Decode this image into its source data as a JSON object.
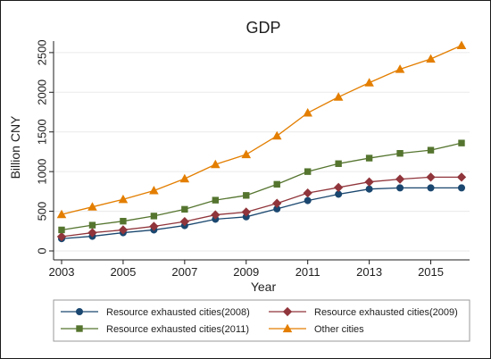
{
  "chart_data": {
    "type": "line",
    "title": "GDP",
    "xlabel": "Year",
    "ylabel": "Billion CNY",
    "x": [
      2003,
      2004,
      2005,
      2006,
      2007,
      2008,
      2009,
      2010,
      2011,
      2012,
      2013,
      2014,
      2015,
      2016
    ],
    "xlim": [
      2003,
      2016
    ],
    "ylim": [
      0,
      2600
    ],
    "xticks": [
      2003,
      2005,
      2007,
      2009,
      2011,
      2013,
      2015
    ],
    "yticks": [
      0,
      500,
      1000,
      1500,
      2000,
      2500
    ],
    "grid": "horizontal",
    "legend_position": "bottom",
    "series": [
      {
        "name": "Resource exhausted cities(2008)",
        "color": "#1a476f",
        "marker": "circle",
        "values": [
          155,
          185,
          230,
          265,
          320,
          400,
          430,
          530,
          635,
          715,
          780,
          795,
          795,
          795
        ]
      },
      {
        "name": "Resource exhausted cities(2009)",
        "color": "#90353b",
        "marker": "diamond",
        "values": [
          180,
          230,
          265,
          310,
          370,
          455,
          490,
          600,
          730,
          800,
          870,
          905,
          930,
          930
        ]
      },
      {
        "name": "Resource exhausted cities(2011)",
        "color": "#55752f",
        "marker": "square",
        "values": [
          265,
          325,
          375,
          440,
          525,
          640,
          700,
          840,
          1000,
          1100,
          1170,
          1230,
          1270,
          1360
        ]
      },
      {
        "name": "Other cities",
        "color": "#e37e00",
        "marker": "triangle",
        "values": [
          460,
          555,
          650,
          760,
          910,
          1090,
          1215,
          1450,
          1740,
          1940,
          2120,
          2290,
          2420,
          2590
        ]
      }
    ]
  }
}
